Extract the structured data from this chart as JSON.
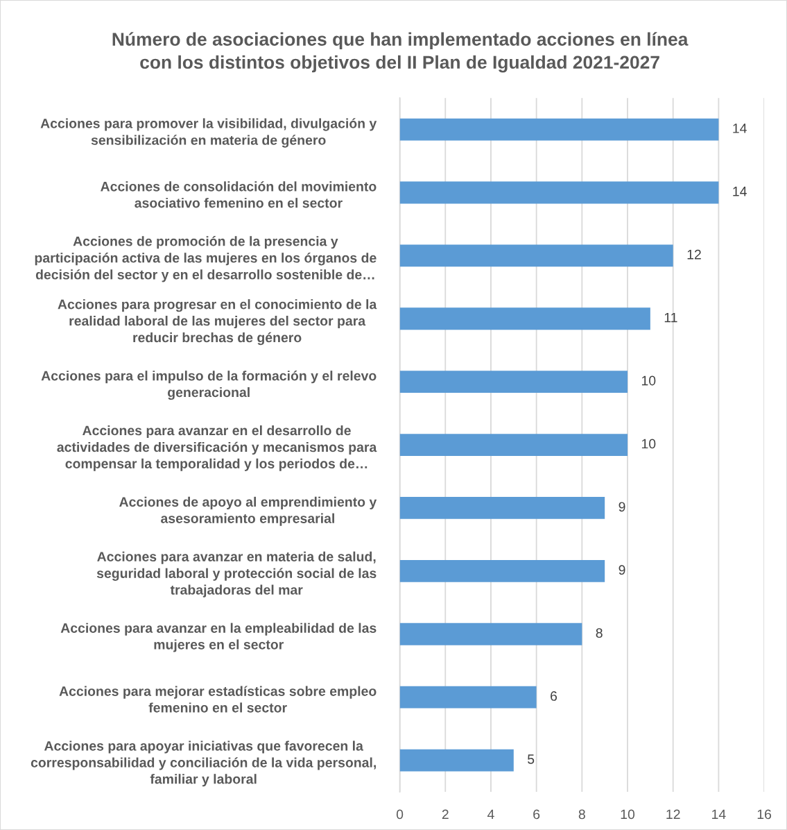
{
  "chart_data": {
    "type": "bar",
    "orientation": "horizontal",
    "title": "Número de asociaciones que han implementado acciones en línea\ncon los distintos objetivos del II Plan de Igualdad 2021-2027",
    "categories": [
      "Acciones para promover la visibilidad, divulgación y\nsensibilización en materia de género",
      "Acciones de consolidación del movimiento\nasociativo femenino en el sector",
      "Acciones de promoción de la presencia y\nparticipación activa de las mujeres en los órganos de\ndecisión del sector y en el desarrollo sostenible de…",
      "Acciones para progresar en el conocimiento de la\nrealidad laboral de las mujeres del sector para\nreducir brechas de género",
      "Acciones para el impulso de la formación y el relevo\ngeneracional",
      "Acciones para avanzar en el desarrollo de\nactividades de diversificación y mecanismos para\ncompensar la temporalidad y los periodos de…",
      "Acciones de apoyo al emprendimiento y\nasesoramiento empresarial",
      "Acciones para avanzar en materia de salud,\nseguridad laboral y protección social de las\ntrabajadoras del mar",
      "Acciones para avanzar en la empleabilidad de las\nmujeres en el sector",
      "Acciones para mejorar estadísticas sobre empleo\nfemenino en el sector",
      "Acciones para apoyar iniciativas que favorecen la\ncorresponsabilidad y conciliación de la vida personal,\nfamiliar y laboral"
    ],
    "values": [
      14,
      14,
      12,
      11,
      10,
      10,
      9,
      9,
      8,
      6,
      5
    ],
    "color": "#5b9bd5",
    "xlim": [
      0,
      16
    ],
    "xticks": [
      0,
      2,
      4,
      6,
      8,
      10,
      12,
      14,
      16
    ],
    "grid": "x",
    "data_labels": true,
    "legend": false
  }
}
